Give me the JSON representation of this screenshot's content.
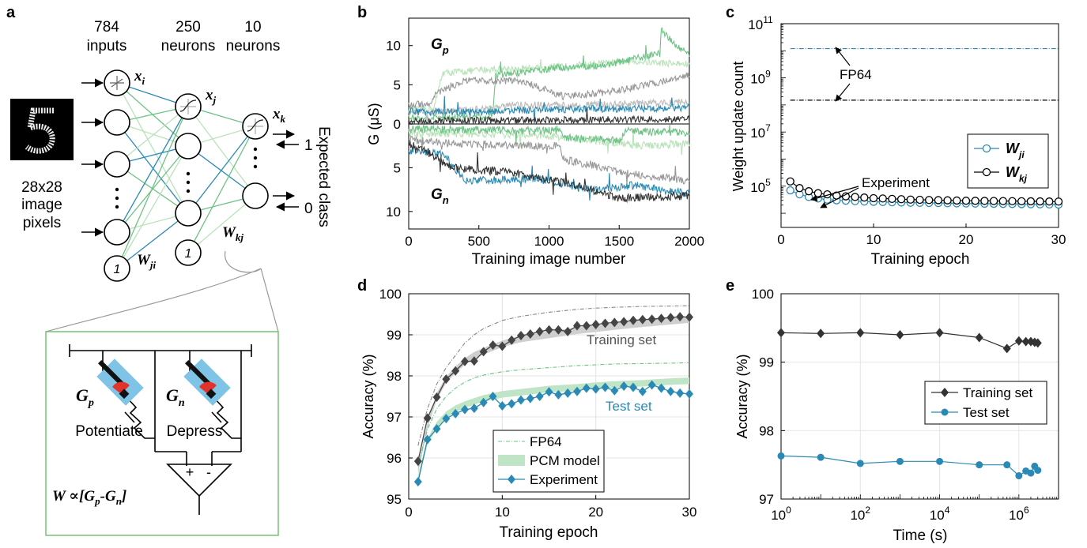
{
  "panel_labels": {
    "a": "a",
    "b": "b",
    "c": "c",
    "d": "d",
    "e": "e"
  },
  "network": {
    "layer_counts": [
      "784",
      "250",
      "10"
    ],
    "layer_units": [
      "inputs",
      "neurons",
      "neurons"
    ],
    "image_caption": [
      "28x28",
      "image",
      "pixels"
    ],
    "node_labels": {
      "xi": "x",
      "xi_sub": "i",
      "xj": "x",
      "xj_sub": "j",
      "xk": "x",
      "xk_sub": "k"
    },
    "weight_labels": {
      "wji": "W",
      "wji_sub": "ji",
      "wkj": "W",
      "wkj_sub": "kj"
    },
    "bias_label": "1",
    "output_targets": [
      "1",
      "0"
    ],
    "expected_class_label": "Expected class",
    "circuit": {
      "gp": "G",
      "gp_sub": "p",
      "gn": "G",
      "gn_sub": "n",
      "potentiate": "Potentiate",
      "depress": "Depress",
      "plus": "+",
      "minus": "-",
      "formula": "W ∝[G",
      "formula_p": "p",
      "formula_mid": "-G",
      "formula_n": "n",
      "formula_end": "]"
    },
    "colors": {
      "blue": "#2a8ab5",
      "green": "#6cc384",
      "lightgreen": "#b9e3b9",
      "box": "#7cc67c"
    }
  },
  "chart_data": [
    {
      "panel": "b",
      "type": "line",
      "title": "",
      "xlabel": "Training image number",
      "ylabel": "G (μS)",
      "xlim": [
        0,
        2000
      ],
      "xticks": [
        0,
        500,
        1000,
        1500,
        2000
      ],
      "yticks_top": [
        0,
        5,
        10
      ],
      "yticks_bottom": [
        5,
        10
      ],
      "series_labels": {
        "top": "G",
        "top_sub": "p",
        "bottom": "G",
        "bottom_sub": "n"
      },
      "series": [
        {
          "region": "Gp",
          "color": "#b9e3b9",
          "knots": [
            [
              0,
              1.8
            ],
            [
              180,
              2.0
            ],
            [
              240,
              6.5
            ],
            [
              600,
              7.0
            ],
            [
              1000,
              7.2
            ],
            [
              1300,
              7.6
            ],
            [
              1600,
              8.0
            ],
            [
              2000,
              7.6
            ]
          ]
        },
        {
          "region": "Gp",
          "color": "#6cc384",
          "knots": [
            [
              0,
              0.8
            ],
            [
              600,
              1.0
            ],
            [
              620,
              6.2
            ],
            [
              900,
              6.8
            ],
            [
              1100,
              7.2
            ],
            [
              1400,
              7.5
            ],
            [
              1790,
              9.0
            ],
            [
              1800,
              12.0
            ],
            [
              1900,
              10.0
            ],
            [
              2000,
              9.0
            ]
          ]
        },
        {
          "region": "Gp",
          "color": "#999999",
          "knots": [
            [
              0,
              2.4
            ],
            [
              150,
              2.6
            ],
            [
              200,
              4.0
            ],
            [
              400,
              5.5
            ],
            [
              800,
              5.5
            ],
            [
              1100,
              3.5
            ],
            [
              1400,
              4.0
            ],
            [
              1700,
              5.0
            ],
            [
              2000,
              6.2
            ]
          ]
        },
        {
          "region": "Gp",
          "color": "#bbbbbb",
          "knots": [
            [
              0,
              1.4
            ],
            [
              400,
              1.8
            ],
            [
              800,
              2.4
            ],
            [
              1200,
              2.4
            ],
            [
              1600,
              2.6
            ],
            [
              2000,
              2.8
            ]
          ]
        },
        {
          "region": "Gp",
          "color": "#2a8ab5",
          "knots": [
            [
              0,
              1.6
            ],
            [
              500,
              1.5
            ],
            [
              900,
              1.8
            ],
            [
              1300,
              1.9
            ],
            [
              1700,
              2.0
            ],
            [
              2000,
              2.1
            ]
          ]
        },
        {
          "region": "Gp",
          "color": "#333333",
          "knots": [
            [
              0,
              0.4
            ],
            [
              1000,
              0.5
            ],
            [
              2000,
              0.6
            ]
          ]
        },
        {
          "region": "Gn",
          "color": "#b9e3b9",
          "knots": [
            [
              0,
              1.0
            ],
            [
              800,
              1.2
            ],
            [
              1100,
              1.5
            ],
            [
              1400,
              2.0
            ],
            [
              1700,
              2.5
            ],
            [
              2000,
              2.2
            ]
          ]
        },
        {
          "region": "Gn",
          "color": "#6cc384",
          "knots": [
            [
              0,
              0.6
            ],
            [
              1080,
              0.8
            ],
            [
              1100,
              1.6
            ],
            [
              1500,
              1.8
            ],
            [
              1550,
              0.8
            ],
            [
              2000,
              1.0
            ]
          ]
        },
        {
          "region": "Gn",
          "color": "#999999",
          "knots": [
            [
              0,
              1.8
            ],
            [
              300,
              2.2
            ],
            [
              1000,
              2.6
            ],
            [
              1080,
              2.2
            ],
            [
              1100,
              4.0
            ],
            [
              1500,
              5.5
            ],
            [
              2000,
              6.5
            ]
          ]
        },
        {
          "region": "Gn",
          "color": "#2a8ab5",
          "knots": [
            [
              0,
              3.0
            ],
            [
              250,
              3.5
            ],
            [
              400,
              6.5
            ],
            [
              900,
              6.2
            ],
            [
              1300,
              7.5
            ],
            [
              1600,
              7.0
            ],
            [
              2000,
              8.0
            ]
          ]
        },
        {
          "region": "Gn",
          "color": "#333333",
          "knots": [
            [
              0,
              2.2
            ],
            [
              200,
              3.8
            ],
            [
              300,
              5.0
            ],
            [
              700,
              5.5
            ],
            [
              1200,
              7.0
            ],
            [
              1500,
              8.5
            ],
            [
              2000,
              8.2
            ]
          ]
        }
      ]
    },
    {
      "panel": "c",
      "type": "line",
      "xlabel": "Training epoch",
      "ylabel": "Weight update count",
      "xlim": [
        0,
        30
      ],
      "ylim": [
        3000,
        100000000000
      ],
      "yscale": "log",
      "xticks": [
        0,
        10,
        20,
        30
      ],
      "yticks": [
        {
          "v": 100000,
          "base": "10",
          "exp": "5"
        },
        {
          "v": 10000000,
          "base": "10",
          "exp": "7"
        },
        {
          "v": 1000000000,
          "base": "10",
          "exp": "9"
        },
        {
          "v": 100000000000,
          "base": "10",
          "exp": "11"
        }
      ],
      "fp64_label": "FP64",
      "experiment_label": "Experiment",
      "fp64_lines": [
        {
          "y": 12000000000,
          "color": "#2a8ab5"
        },
        {
          "y": 150000000,
          "color": "#000000"
        }
      ],
      "series": [
        {
          "name": "W",
          "sub": "ji",
          "color": "#2a8ab5",
          "x": [
            1,
            2,
            3,
            4,
            5,
            6,
            7,
            8,
            9,
            10,
            11,
            12,
            13,
            14,
            15,
            16,
            17,
            18,
            19,
            20,
            21,
            22,
            23,
            24,
            25,
            26,
            27,
            28,
            29,
            30
          ],
          "y": [
            70000,
            50000,
            40000,
            35000,
            32000,
            30000,
            29000,
            28000,
            27000,
            26500,
            26000,
            25500,
            25000,
            24500,
            24200,
            24000,
            23800,
            23500,
            23300,
            23000,
            22800,
            22600,
            22400,
            22200,
            22000,
            21800,
            21600,
            21400,
            21200,
            21000
          ]
        },
        {
          "name": "W",
          "sub": "kj",
          "color": "#000000",
          "x": [
            1,
            2,
            3,
            4,
            5,
            6,
            7,
            8,
            9,
            10,
            11,
            12,
            13,
            14,
            15,
            16,
            17,
            18,
            19,
            20,
            21,
            22,
            23,
            24,
            25,
            26,
            27,
            28,
            29,
            30
          ],
          "y": [
            150000,
            85000,
            65000,
            55000,
            50000,
            45000,
            42000,
            40000,
            38000,
            36000,
            35000,
            34000,
            33000,
            32000,
            31500,
            31000,
            30500,
            30000,
            29500,
            29000,
            28800,
            28600,
            28400,
            28200,
            28000,
            27800,
            27600,
            27400,
            27200,
            27000
          ]
        }
      ],
      "legend_position": "right-middle"
    },
    {
      "panel": "d",
      "type": "line",
      "xlabel": "Training epoch",
      "ylabel": "Accuracy (%)",
      "xlim": [
        0,
        30
      ],
      "ylim": [
        95,
        100
      ],
      "xticks": [
        0,
        10,
        20,
        30
      ],
      "yticks": [
        95,
        96,
        97,
        98,
        99,
        100
      ],
      "annotations": {
        "training": "Training set",
        "test": "Test set"
      },
      "legend": {
        "fp64": "FP64",
        "pcm": "PCM model",
        "experiment": "Experiment"
      },
      "legend_position": "bottom-center",
      "fp64_train": {
        "x": [
          1,
          2,
          3,
          4,
          5,
          6,
          7,
          8,
          10,
          12,
          15,
          18,
          20,
          22,
          25,
          28,
          30
        ],
        "y": [
          96.3,
          97.2,
          97.8,
          98.2,
          98.5,
          98.8,
          99.0,
          99.15,
          99.35,
          99.45,
          99.55,
          99.62,
          99.65,
          99.67,
          99.69,
          99.7,
          99.71
        ]
      },
      "fp64_test": {
        "x": [
          1,
          2,
          3,
          4,
          5,
          6,
          7,
          8,
          10,
          12,
          15,
          18,
          20,
          22,
          25,
          28,
          30
        ],
        "y": [
          95.8,
          96.7,
          97.2,
          97.5,
          97.7,
          97.85,
          97.95,
          98.02,
          98.1,
          98.15,
          98.2,
          98.25,
          98.27,
          98.29,
          98.3,
          98.31,
          98.32
        ]
      },
      "pcm_train": {
        "x": [
          1,
          2,
          3,
          4,
          5,
          6,
          7,
          8,
          10,
          12,
          15,
          18,
          20,
          22,
          25,
          28,
          30
        ],
        "y": [
          95.7,
          96.8,
          97.5,
          97.9,
          98.15,
          98.35,
          98.5,
          98.6,
          98.78,
          98.9,
          99.0,
          99.1,
          99.15,
          99.2,
          99.27,
          99.33,
          99.37
        ]
      },
      "pcm_test": {
        "x": [
          1,
          2,
          3,
          4,
          5,
          6,
          7,
          8,
          10,
          12,
          15,
          18,
          20,
          22,
          25,
          28,
          30
        ],
        "y": [
          95.5,
          96.4,
          96.8,
          97.05,
          97.2,
          97.3,
          97.38,
          97.45,
          97.55,
          97.6,
          97.68,
          97.72,
          97.76,
          97.79,
          97.82,
          97.86,
          97.88
        ]
      },
      "series": [
        {
          "name": "Training set",
          "color": "#444444",
          "x": [
            1,
            2,
            3,
            4,
            5,
            6,
            7,
            8,
            9,
            10,
            11,
            12,
            13,
            14,
            15,
            16,
            17,
            18,
            19,
            20,
            21,
            22,
            23,
            24,
            25,
            26,
            27,
            28,
            29,
            30
          ],
          "y": [
            95.92,
            96.97,
            97.48,
            97.92,
            98.12,
            98.35,
            98.36,
            98.59,
            98.75,
            98.72,
            98.87,
            98.98,
            99.02,
            99.08,
            99.12,
            99.12,
            99.08,
            99.22,
            99.22,
            99.25,
            99.28,
            99.3,
            99.32,
            99.35,
            99.37,
            99.38,
            99.4,
            99.42,
            99.44,
            99.43
          ]
        },
        {
          "name": "Test set",
          "color": "#2a8ab5",
          "x": [
            1,
            2,
            3,
            4,
            5,
            6,
            7,
            8,
            9,
            10,
            11,
            12,
            13,
            14,
            15,
            16,
            17,
            18,
            19,
            20,
            21,
            22,
            23,
            24,
            25,
            26,
            27,
            28,
            29,
            30
          ],
          "y": [
            95.42,
            96.45,
            96.71,
            96.96,
            97.08,
            97.18,
            97.21,
            97.35,
            97.5,
            97.27,
            97.32,
            97.41,
            97.45,
            97.5,
            97.61,
            97.54,
            97.58,
            97.62,
            97.7,
            97.68,
            97.72,
            97.64,
            97.75,
            97.72,
            97.62,
            97.78,
            97.7,
            97.62,
            97.58,
            97.56
          ]
        }
      ]
    },
    {
      "panel": "e",
      "type": "line",
      "xlabel": "Time (s)",
      "ylabel": "Accuracy (%)",
      "xscale": "log",
      "xlim": [
        1,
        10000000
      ],
      "ylim": [
        97,
        100
      ],
      "xticks": [
        {
          "v": 1,
          "base": "10",
          "exp": "0"
        },
        {
          "v": 100,
          "base": "10",
          "exp": "2"
        },
        {
          "v": 10000,
          "base": "10",
          "exp": "4"
        },
        {
          "v": 1000000,
          "base": "10",
          "exp": "6"
        }
      ],
      "yticks": [
        97,
        98,
        99,
        100
      ],
      "legend_position": "center-right",
      "series": [
        {
          "name": "Training set",
          "color": "#333333",
          "x": [
            1,
            10,
            100,
            1000,
            10000,
            100000,
            500000,
            1000000,
            1500000,
            2000000,
            2500000,
            3000000
          ],
          "y": [
            99.43,
            99.42,
            99.43,
            99.4,
            99.43,
            99.36,
            99.2,
            99.31,
            99.3,
            99.3,
            99.29,
            99.28
          ]
        },
        {
          "name": "Test set",
          "color": "#2a8ab5",
          "x": [
            1,
            10,
            100,
            1000,
            10000,
            100000,
            500000,
            1000000,
            1500000,
            2000000,
            2500000,
            3000000
          ],
          "y": [
            97.63,
            97.61,
            97.52,
            97.55,
            97.55,
            97.5,
            97.5,
            97.34,
            97.41,
            97.38,
            97.48,
            97.42
          ]
        }
      ]
    }
  ]
}
